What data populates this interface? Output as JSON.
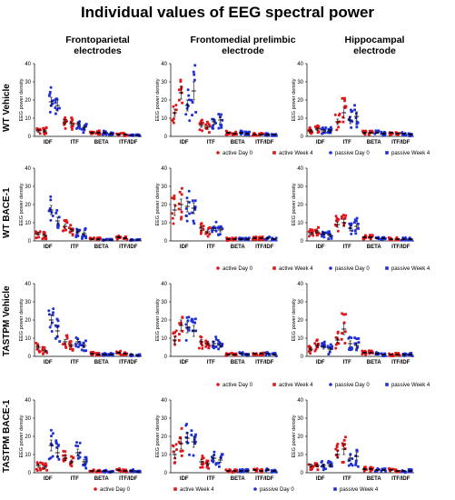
{
  "title": "Individual values of EEG spectral power",
  "columns": [
    {
      "title_line1": "Frontoparietal",
      "title_line2": "electrodes"
    },
    {
      "title_line1": "Frontomedial prelimbic",
      "title_line2": "electrode"
    },
    {
      "title_line1": "Hippocampal",
      "title_line2": "electrode"
    }
  ],
  "rows": [
    "WT Vehicle",
    "WT BACE-1",
    "TASTPM Vehicle",
    "TASTPM BACE-1"
  ],
  "colors": {
    "active": "#e0161b",
    "passive": "#1f2fd6"
  },
  "legend": [
    {
      "label": "active Day 0",
      "color": "#e0161b",
      "marker": "circle"
    },
    {
      "label": "active Week 4",
      "color": "#e0161b",
      "marker": "square"
    },
    {
      "label": "passive Day 0",
      "color": "#1f2fd6",
      "marker": "circle"
    },
    {
      "label": "passive Week 4",
      "color": "#1f2fd6",
      "marker": "square"
    }
  ],
  "chart_data": {
    "type": "scatter",
    "ylabel": "EEG power density",
    "ylim": [
      0,
      40
    ],
    "yticks": [
      0,
      10,
      20,
      30,
      40
    ],
    "categories": [
      "IDF",
      "ITF",
      "BETA",
      "ITF/IDF"
    ],
    "series_names": [
      "active Day 0",
      "active Week 4",
      "passive Day 0",
      "passive Week 4"
    ],
    "panels": [
      {
        "row": "WT Vehicle",
        "col": "Frontoparietal electrodes",
        "groups": [
          {
            "category": "IDF",
            "means": [
              3,
              3,
              19,
              17
            ],
            "sem": [
              0.8,
              0.8,
              2.5,
              3
            ]
          },
          {
            "category": "ITF",
            "means": [
              8,
              7,
              7,
              5
            ],
            "sem": [
              1.2,
              1,
              1,
              1
            ]
          },
          {
            "category": "BETA",
            "means": [
              2,
              2,
              2,
              1.5
            ],
            "sem": [
              0.4,
              0.4,
              0.4,
              0.4
            ]
          },
          {
            "category": "ITF/IDF",
            "means": [
              1,
              1,
              0.5,
              0.5
            ],
            "sem": [
              0.3,
              0.3,
              0.2,
              0.2
            ]
          }
        ]
      },
      {
        "row": "WT Vehicle",
        "col": "Frontomedial prelimbic electrode",
        "groups": [
          {
            "category": "IDF",
            "means": [
              13,
              24,
              17,
              25
            ],
            "sem": [
              2,
              3.5,
              3,
              5
            ]
          },
          {
            "category": "ITF",
            "means": [
              6,
              5,
              8,
              9
            ],
            "sem": [
              1,
              1,
              1.5,
              1.5
            ]
          },
          {
            "category": "BETA",
            "means": [
              2,
              1.5,
              2,
              1.5
            ],
            "sem": [
              0.4,
              0.4,
              0.4,
              0.4
            ]
          },
          {
            "category": "ITF/IDF",
            "means": [
              1,
              1,
              1,
              1
            ],
            "sem": [
              0.3,
              0.3,
              0.3,
              0.3
            ]
          }
        ]
      },
      {
        "row": "WT Vehicle",
        "col": "Hippocampal electrode",
        "groups": [
          {
            "category": "IDF",
            "means": [
              3,
              4,
              3,
              3
            ],
            "sem": [
              0.8,
              0.8,
              0.8,
              0.8
            ]
          },
          {
            "category": "ITF",
            "means": [
              8,
              13,
              9,
              11
            ],
            "sem": [
              1.5,
              3,
              2,
              2.5
            ]
          },
          {
            "category": "BETA",
            "means": [
              2,
              2,
              2,
              1.5
            ],
            "sem": [
              0.4,
              0.4,
              0.4,
              0.4
            ]
          },
          {
            "category": "ITF/IDF",
            "means": [
              2,
              1.5,
              1.5,
              1
            ],
            "sem": [
              0.4,
              0.3,
              0.3,
              0.3
            ]
          }
        ]
      },
      {
        "row": "WT BACE-1",
        "col": "Frontoparietal electrodes",
        "groups": [
          {
            "category": "IDF",
            "means": [
              4,
              3,
              17,
              11
            ],
            "sem": [
              0.8,
              0.8,
              2.5,
              2
            ]
          },
          {
            "category": "ITF",
            "means": [
              8,
              6,
              5,
              4
            ],
            "sem": [
              1.2,
              1,
              1,
              1
            ]
          },
          {
            "category": "BETA",
            "means": [
              1,
              1,
              0.5,
              0.5
            ],
            "sem": [
              0.3,
              0.3,
              0.2,
              0.2
            ]
          },
          {
            "category": "ITF/IDF",
            "means": [
              2,
              1.5,
              0.5,
              0.5
            ],
            "sem": [
              0.4,
              0.3,
              0.2,
              0.2
            ]
          }
        ]
      },
      {
        "row": "WT BACE-1",
        "col": "Frontomedial prelimbic electrode",
        "groups": [
          {
            "category": "IDF",
            "means": [
              17,
              20,
              19,
              18
            ],
            "sem": [
              3,
              3,
              3,
              3
            ]
          },
          {
            "category": "ITF",
            "means": [
              7,
              5,
              7,
              6
            ],
            "sem": [
              1.2,
              1,
              1.2,
              1
            ]
          },
          {
            "category": "BETA",
            "means": [
              1,
              1,
              1,
              1
            ],
            "sem": [
              0.3,
              0.3,
              0.3,
              0.3
            ]
          },
          {
            "category": "ITF/IDF",
            "means": [
              1.5,
              1.5,
              1.5,
              1
            ],
            "sem": [
              0.3,
              0.3,
              0.3,
              0.3
            ]
          }
        ]
      },
      {
        "row": "WT BACE-1",
        "col": "Hippocampal electrode",
        "groups": [
          {
            "category": "IDF",
            "means": [
              4,
              5,
              4,
              3
            ],
            "sem": [
              0.8,
              0.8,
              0.8,
              0.8
            ]
          },
          {
            "category": "ITF",
            "means": [
              9,
              10,
              7,
              8
            ],
            "sem": [
              1.5,
              2,
              1.5,
              1.5
            ]
          },
          {
            "category": "BETA",
            "means": [
              2,
              2,
              1.5,
              1.5
            ],
            "sem": [
              0.4,
              0.4,
              0.3,
              0.3
            ]
          },
          {
            "category": "ITF/IDF",
            "means": [
              1,
              1,
              1,
              1
            ],
            "sem": [
              0.3,
              0.3,
              0.3,
              0.3
            ]
          }
        ]
      },
      {
        "row": "TASTPM Vehicle",
        "col": "Frontoparietal electrodes",
        "groups": [
          {
            "category": "IDF",
            "means": [
              5,
              3,
              20,
              14
            ],
            "sem": [
              1,
              0.8,
              3,
              3
            ]
          },
          {
            "category": "ITF",
            "means": [
              8,
              6,
              8,
              6
            ],
            "sem": [
              1.2,
              1,
              1.2,
              1
            ]
          },
          {
            "category": "BETA",
            "means": [
              1.5,
              1,
              1,
              1
            ],
            "sem": [
              0.3,
              0.3,
              0.3,
              0.3
            ]
          },
          {
            "category": "ITF/IDF",
            "means": [
              2,
              1.5,
              1,
              0.5
            ],
            "sem": [
              0.4,
              0.3,
              0.3,
              0.2
            ]
          }
        ]
      },
      {
        "row": "TASTPM Vehicle",
        "col": "Frontomedial prelimbic electrode",
        "groups": [
          {
            "category": "IDF",
            "means": [
              9,
              17,
              16,
              14
            ],
            "sem": [
              2,
              3,
              3,
              3
            ]
          },
          {
            "category": "ITF",
            "means": [
              8,
              7,
              7,
              6
            ],
            "sem": [
              1.2,
              1,
              1.2,
              1
            ]
          },
          {
            "category": "BETA",
            "means": [
              1,
              1,
              1.5,
              1
            ],
            "sem": [
              0.3,
              0.3,
              0.3,
              0.3
            ]
          },
          {
            "category": "ITF/IDF",
            "means": [
              1.5,
              1.5,
              1.5,
              1
            ],
            "sem": [
              0.3,
              0.3,
              0.3,
              0.3
            ]
          }
        ]
      },
      {
        "row": "TASTPM Vehicle",
        "col": "Hippocampal electrode",
        "groups": [
          {
            "category": "IDF",
            "means": [
              4,
              6,
              5,
              4
            ],
            "sem": [
              1,
              1,
              1,
              1
            ]
          },
          {
            "category": "ITF",
            "means": [
              9,
              15,
              7,
              6
            ],
            "sem": [
              1.5,
              3,
              1.5,
              1.5
            ]
          },
          {
            "category": "BETA",
            "means": [
              2,
              2,
              1.5,
              1
            ],
            "sem": [
              0.4,
              0.4,
              0.3,
              0.3
            ]
          },
          {
            "category": "ITF/IDF",
            "means": [
              1,
              1,
              1,
              1
            ],
            "sem": [
              0.3,
              0.3,
              0.3,
              0.3
            ]
          }
        ]
      },
      {
        "row": "TASTPM BACE-1",
        "col": "Frontoparietal electrodes",
        "groups": [
          {
            "category": "IDF",
            "means": [
              4,
              3,
              15,
              11
            ],
            "sem": [
              1,
              0.8,
              3,
              2.5
            ]
          },
          {
            "category": "ITF",
            "means": [
              8,
              6,
              11,
              6
            ],
            "sem": [
              1.2,
              1,
              2,
              1.2
            ]
          },
          {
            "category": "BETA",
            "means": [
              1,
              1,
              1,
              0.5
            ],
            "sem": [
              0.3,
              0.3,
              0.3,
              0.2
            ]
          },
          {
            "category": "ITF/IDF",
            "means": [
              1.5,
              1,
              1,
              0.5
            ],
            "sem": [
              0.3,
              0.3,
              0.3,
              0.2
            ]
          }
        ]
      },
      {
        "row": "TASTPM BACE-1",
        "col": "Frontomedial prelimbic electrode",
        "groups": [
          {
            "category": "IDF",
            "means": [
              10,
              16,
              19,
              17
            ],
            "sem": [
              2,
              3,
              3,
              3
            ]
          },
          {
            "category": "ITF",
            "means": [
              6,
              5,
              8,
              7
            ],
            "sem": [
              1.2,
              1,
              1.5,
              1.2
            ]
          },
          {
            "category": "BETA",
            "means": [
              1,
              1,
              1,
              1
            ],
            "sem": [
              0.3,
              0.3,
              0.3,
              0.3
            ]
          },
          {
            "category": "ITF/IDF",
            "means": [
              1.5,
              1,
              1.5,
              1
            ],
            "sem": [
              0.3,
              0.3,
              0.3,
              0.3
            ]
          }
        ]
      },
      {
        "row": "TASTPM BACE-1",
        "col": "Hippocampal electrode",
        "groups": [
          {
            "category": "IDF",
            "means": [
              4,
              4,
              4,
              4
            ],
            "sem": [
              0.8,
              0.8,
              0.8,
              0.8
            ]
          },
          {
            "category": "ITF",
            "means": [
              10,
              13,
              8,
              9
            ],
            "sem": [
              2,
              3,
              1.5,
              2
            ]
          },
          {
            "category": "BETA",
            "means": [
              2,
              2,
              1.5,
              1.5
            ],
            "sem": [
              0.4,
              0.4,
              0.3,
              0.3
            ]
          },
          {
            "category": "ITF/IDF",
            "means": [
              1.5,
              1,
              1,
              1
            ],
            "sem": [
              0.3,
              0.3,
              0.3,
              0.3
            ]
          }
        ]
      }
    ]
  }
}
